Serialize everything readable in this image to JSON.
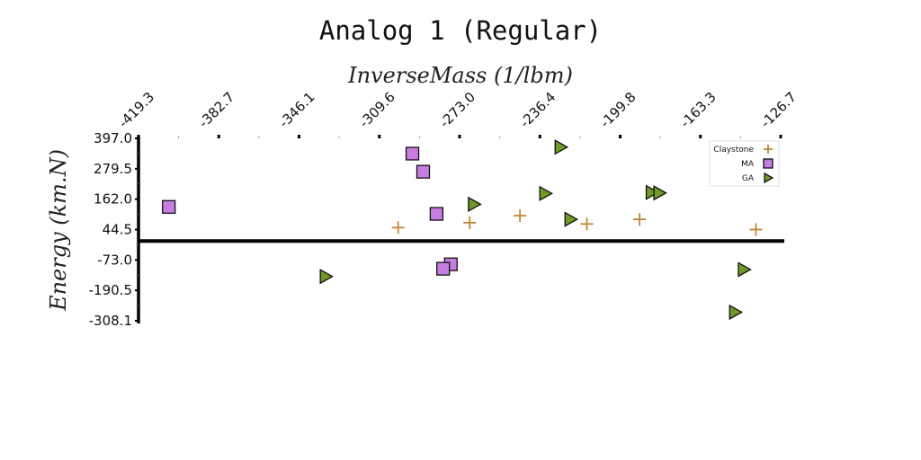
{
  "chart_data": {
    "type": "scatter",
    "title": "Analog 1 (Regular)",
    "xlabel": "InverseMass (1/lbm)",
    "ylabel": "Energy (km.N)",
    "x_ticks": [
      "-419.3",
      "-382.7",
      "-346.1",
      "-309.6",
      "-273.0",
      "-236.4",
      "-199.8",
      "-163.3",
      "-126.7"
    ],
    "y_ticks": [
      "397.0",
      "279.5",
      "162.0",
      "44.5",
      "-73.0",
      "-190.5",
      "-308.1"
    ],
    "xlim": [
      -419.3,
      -126.7
    ],
    "ylim": [
      -308.1,
      397.0
    ],
    "x_axis_position": "top",
    "grid": false,
    "legend_position": "top-right",
    "series": [
      {
        "name": "Claystone",
        "marker": "plus",
        "color": "#c0873a",
        "points": [
          {
            "x": -301.0,
            "y": 52.0
          },
          {
            "x": -268.4,
            "y": 71.0
          },
          {
            "x": -245.5,
            "y": 98.0
          },
          {
            "x": -215.0,
            "y": 66.0
          },
          {
            "x": -191.0,
            "y": 84.0
          },
          {
            "x": -138.0,
            "y": 44.5
          }
        ]
      },
      {
        "name": "MA",
        "marker": "square",
        "color": "#c57de0",
        "points": [
          {
            "x": -405.5,
            "y": 132.0
          },
          {
            "x": -294.5,
            "y": 338.0
          },
          {
            "x": -289.6,
            "y": 268.0
          },
          {
            "x": -283.5,
            "y": 105.0
          },
          {
            "x": -277.0,
            "y": -90.0
          },
          {
            "x": -280.5,
            "y": -107.0
          }
        ]
      },
      {
        "name": "GA",
        "marker": "triangle-right",
        "color": "#6e9a26",
        "points": [
          {
            "x": -334.0,
            "y": -137.0
          },
          {
            "x": -266.5,
            "y": 142.0
          },
          {
            "x": -234.0,
            "y": 184.0
          },
          {
            "x": -227.0,
            "y": 363.0
          },
          {
            "x": -222.5,
            "y": 84.0
          },
          {
            "x": -185.5,
            "y": 188.0
          },
          {
            "x": -182.0,
            "y": 186.0
          },
          {
            "x": -143.5,
            "y": -110.0
          },
          {
            "x": -147.5,
            "y": -275.0
          }
        ]
      }
    ]
  }
}
